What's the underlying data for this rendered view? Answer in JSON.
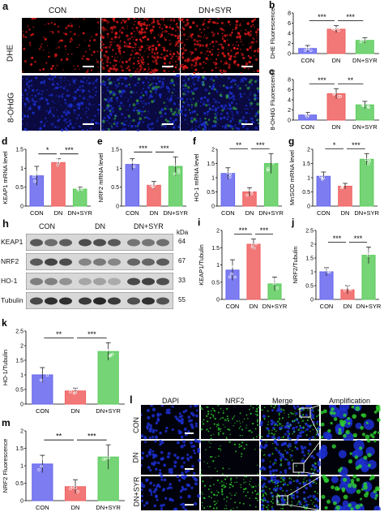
{
  "panels": {
    "a": {
      "letter": "a",
      "columns": [
        "CON",
        "DN",
        "DN+SYR"
      ],
      "rows": [
        "DHE",
        "8-OHdG"
      ]
    },
    "h": {
      "letter": "h",
      "columns": [
        "CON",
        "DN",
        "DN+SYR"
      ],
      "unit": "kDa",
      "bands": [
        {
          "label": "KEAP1",
          "kda": "64"
        },
        {
          "label": "NRF2",
          "kda": "67"
        },
        {
          "label": "HO-1",
          "kda": "33"
        },
        {
          "label": "Tubulin",
          "kda": "55"
        }
      ]
    },
    "l": {
      "letter": "l",
      "columns": [
        "DAPI",
        "NRF2",
        "Merge",
        "Amplification"
      ],
      "rows": [
        "CON",
        "DN",
        "DN+SYR"
      ]
    }
  },
  "colors": {
    "con": "#6666ee",
    "dn": "#f06060",
    "dnsyr": "#5dcc5d",
    "dapi": "#1c2fd0",
    "nrf2": "#2ed12e",
    "dhe": "#d81818"
  },
  "chart_data": [
    {
      "id": "b",
      "type": "bar",
      "categories": [
        "CON",
        "DN",
        "DN+SYR"
      ],
      "values": [
        1,
        4.8,
        2.6
      ],
      "errors": [
        0.6,
        0.7,
        0.5
      ],
      "ylabel": "DHE Fluorescence",
      "ylim": [
        0,
        8
      ],
      "yticks": [
        0,
        2,
        4,
        6,
        8
      ],
      "sig": [
        {
          "from": 0,
          "to": 1,
          "label": "***"
        },
        {
          "from": 1,
          "to": 2,
          "label": "***"
        }
      ]
    },
    {
      "id": "c",
      "type": "bar",
      "categories": [
        "CON",
        "DN",
        "DN+SYR"
      ],
      "values": [
        1,
        5.2,
        3
      ],
      "errors": [
        0.5,
        1,
        0.7
      ],
      "ylabel": "8-OHdG Fluorescence",
      "ylim": [
        0,
        8
      ],
      "yticks": [
        0,
        2,
        4,
        6,
        8
      ],
      "sig": [
        {
          "from": 0,
          "to": 1,
          "label": "***"
        },
        {
          "from": 1,
          "to": 2,
          "label": "**"
        }
      ]
    },
    {
      "id": "d",
      "type": "bar",
      "categories": [
        "CON",
        "DN",
        "DN+SYR"
      ],
      "values": [
        0.8,
        1.15,
        0.45
      ],
      "errors": [
        0.25,
        0.1,
        0.05
      ],
      "ylabel": "KEAP1 mRNA level",
      "ylim": [
        0,
        1.5
      ],
      "yticks": [
        0,
        0.5,
        1,
        1.5
      ],
      "sig": [
        {
          "from": 0,
          "to": 1,
          "label": "*"
        },
        {
          "from": 1,
          "to": 2,
          "label": "***"
        }
      ]
    },
    {
      "id": "e",
      "type": "bar",
      "categories": [
        "CON",
        "DN",
        "DN+SYR"
      ],
      "values": [
        1.1,
        0.55,
        1.05
      ],
      "errors": [
        0.15,
        0.1,
        0.25
      ],
      "ylabel": "NRF2 mRNA level",
      "ylim": [
        0,
        1.5
      ],
      "yticks": [
        0,
        0.5,
        1,
        1.5
      ],
      "sig": [
        {
          "from": 0,
          "to": 1,
          "label": "***"
        },
        {
          "from": 1,
          "to": 2,
          "label": "***"
        }
      ]
    },
    {
      "id": "f",
      "type": "bar",
      "categories": [
        "CON",
        "DN",
        "DN+SYR"
      ],
      "values": [
        1.15,
        0.5,
        1.5
      ],
      "errors": [
        0.2,
        0.15,
        0.35
      ],
      "ylabel": "HO-1 mRNA level",
      "ylim": [
        0,
        2
      ],
      "yticks": [
        0,
        0.5,
        1,
        1.5,
        2
      ],
      "sig": [
        {
          "from": 0,
          "to": 1,
          "label": "**"
        },
        {
          "from": 1,
          "to": 2,
          "label": "***"
        }
      ]
    },
    {
      "id": "g",
      "type": "bar",
      "categories": [
        "CON",
        "DN",
        "DN+SYR"
      ],
      "values": [
        1.05,
        0.7,
        1.65
      ],
      "errors": [
        0.15,
        0.1,
        0.2
      ],
      "ylabel": "MnSOD mRNA level",
      "ylim": [
        0,
        2
      ],
      "yticks": [
        0,
        0.5,
        1,
        1.5,
        2
      ],
      "sig": [
        {
          "from": 0,
          "to": 1,
          "label": "*"
        },
        {
          "from": 1,
          "to": 2,
          "label": "***"
        }
      ]
    },
    {
      "id": "i",
      "type": "bar",
      "categories": [
        "CON",
        "DN",
        "DN+SYR"
      ],
      "values": [
        0.85,
        1.6,
        0.45
      ],
      "errors": [
        0.3,
        0.15,
        0.2
      ],
      "ylabel": "KEAP1/Tubulin",
      "ylim": [
        0,
        2
      ],
      "yticks": [
        0,
        0.5,
        1,
        1.5,
        2
      ],
      "sig": [
        {
          "from": 0,
          "to": 1,
          "label": "***"
        },
        {
          "from": 1,
          "to": 2,
          "label": "***"
        }
      ]
    },
    {
      "id": "j",
      "type": "bar",
      "categories": [
        "CON",
        "DN",
        "DN+SYR"
      ],
      "values": [
        1,
        0.35,
        1.6
      ],
      "errors": [
        0.15,
        0.15,
        0.3
      ],
      "ylabel": "NRF2/Tubulin",
      "ylim": [
        0,
        2.5
      ],
      "yticks": [
        0,
        0.5,
        1,
        1.5,
        2,
        2.5
      ],
      "sig": [
        {
          "from": 0,
          "to": 1,
          "label": "***"
        },
        {
          "from": 1,
          "to": 2,
          "label": "***"
        }
      ]
    },
    {
      "id": "k",
      "type": "bar",
      "categories": [
        "CON",
        "DN",
        "DN+SYR"
      ],
      "values": [
        1,
        0.45,
        1.8
      ],
      "errors": [
        0.25,
        0.1,
        0.3
      ],
      "ylabel": "HO-1/Tubulin",
      "ylim": [
        0,
        2.5
      ],
      "yticks": [
        0,
        0.5,
        1,
        1.5,
        2,
        2.5
      ],
      "sig": [
        {
          "from": 0,
          "to": 1,
          "label": "**"
        },
        {
          "from": 1,
          "to": 2,
          "label": "***"
        }
      ]
    },
    {
      "id": "m",
      "type": "bar",
      "categories": [
        "CON",
        "DN",
        "DN+SYR"
      ],
      "values": [
        1.05,
        0.4,
        1.25
      ],
      "errors": [
        0.25,
        0.2,
        0.35
      ],
      "ylabel": "NRF2 Fluorescence",
      "ylim": [
        0,
        2
      ],
      "yticks": [
        0,
        0.5,
        1,
        1.5,
        2
      ],
      "sig": [
        {
          "from": 0,
          "to": 1,
          "label": "**"
        },
        {
          "from": 1,
          "to": 2,
          "label": "***"
        }
      ]
    }
  ]
}
